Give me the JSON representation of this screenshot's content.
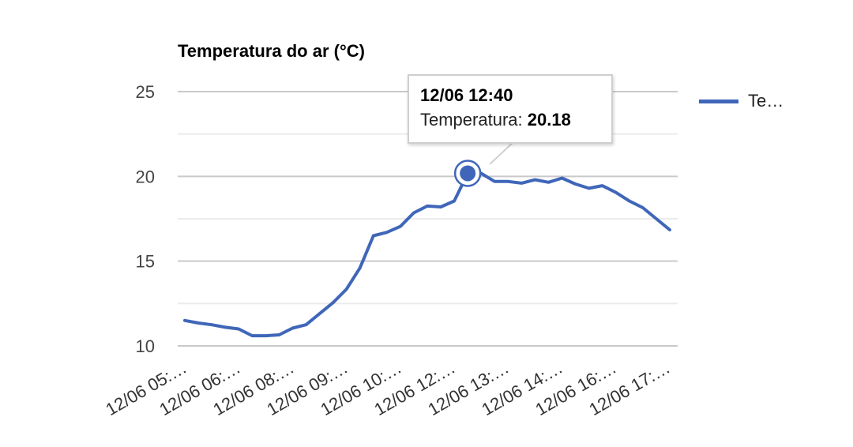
{
  "chart_data": {
    "type": "line",
    "title": "Temperatura do ar (°C)",
    "xlabel": "",
    "ylabel": "",
    "ylim": [
      10,
      25
    ],
    "yticks": [
      10,
      15,
      20,
      25
    ],
    "grid": true,
    "legend_position": "right",
    "x_tick_labels": [
      "12/06 05:…",
      "12/06 06:…",
      "12/06 08:…",
      "12/06 09:…",
      "12/06 10:…",
      "12/06 12:…",
      "12/06 13:…",
      "12/06 14:…",
      "12/06 16:…",
      "12/06 17:…"
    ],
    "series": [
      {
        "name": "Te…",
        "color": "#3f66b8",
        "values": [
          11.5,
          11.35,
          11.25,
          11.1,
          11.0,
          10.6,
          10.6,
          10.65,
          11.05,
          11.25,
          11.9,
          12.55,
          13.35,
          14.6,
          16.5,
          16.7,
          17.05,
          17.85,
          18.25,
          18.2,
          18.55,
          20.18,
          20.18,
          19.7,
          19.7,
          19.6,
          19.8,
          19.65,
          19.9,
          19.55,
          19.3,
          19.45,
          19.05,
          18.55,
          18.15,
          17.5,
          16.85
        ]
      }
    ],
    "highlighted_point_index": 21
  },
  "tooltip": {
    "title": "12/06 12:40",
    "label": "Temperatura:",
    "value": "20.18"
  }
}
